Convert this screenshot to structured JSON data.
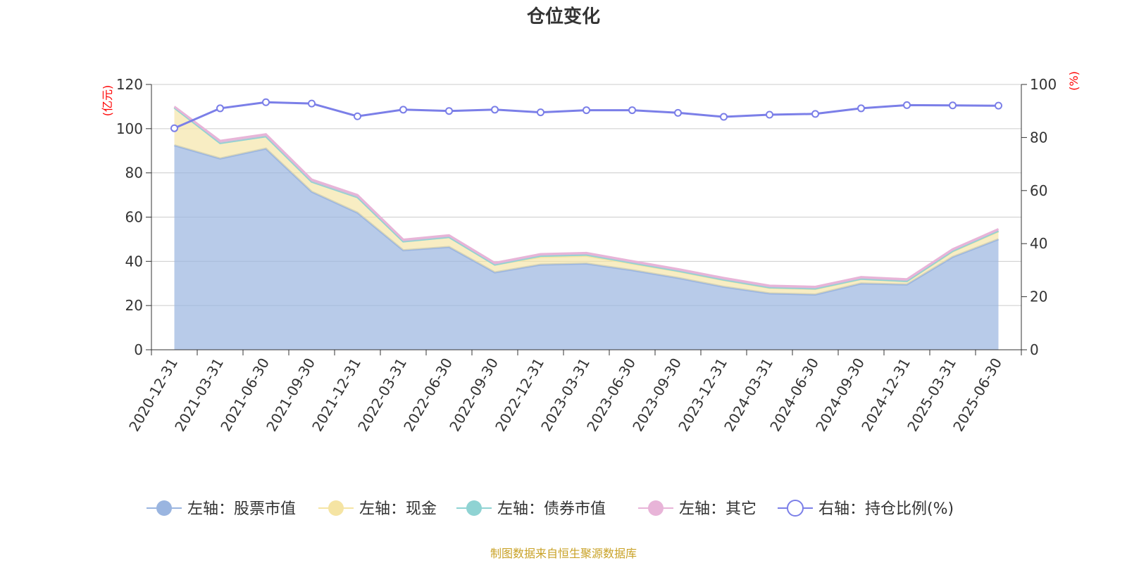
{
  "chart_data": {
    "type": "area",
    "title": "仓位变化",
    "x": [
      "2020-12-31",
      "2021-03-31",
      "2021-06-30",
      "2021-09-30",
      "2021-12-31",
      "2022-03-31",
      "2022-06-30",
      "2022-09-30",
      "2022-12-31",
      "2023-03-31",
      "2023-06-30",
      "2023-09-30",
      "2023-12-31",
      "2024-03-31",
      "2024-06-30",
      "2024-09-30",
      "2024-12-31",
      "2025-03-31",
      "2025-06-30"
    ],
    "left_axis": {
      "unit": "(亿元)",
      "ylim": [
        0,
        120
      ],
      "ticks": [
        0,
        20,
        40,
        60,
        80,
        100,
        120
      ]
    },
    "right_axis": {
      "unit": "(%)",
      "ylim": [
        0,
        100
      ],
      "ticks": [
        0,
        20,
        40,
        60,
        80,
        100
      ]
    },
    "series": [
      {
        "name": "左轴：股票市值",
        "axis": "left",
        "type": "area",
        "color": "#9ab5e0",
        "values": [
          92.5,
          86.5,
          91.0,
          71.5,
          62.0,
          45.0,
          46.5,
          35.0,
          38.5,
          39.0,
          36.0,
          32.5,
          28.5,
          25.5,
          25.0,
          30.0,
          29.5,
          42.0,
          50.0
        ]
      },
      {
        "name": "左轴：现金",
        "axis": "left",
        "type": "area",
        "color": "#f5e4a3",
        "values": [
          17.0,
          7.0,
          5.5,
          4.5,
          7.0,
          4.0,
          4.5,
          3.5,
          3.5,
          3.5,
          3.0,
          3.0,
          3.0,
          2.5,
          2.5,
          2.0,
          1.5,
          2.5,
          3.5
        ]
      },
      {
        "name": "左轴：债券市值",
        "axis": "left",
        "type": "area",
        "color": "#8fd3d3",
        "values": [
          0,
          0,
          0,
          0,
          0,
          0,
          0,
          0,
          0.5,
          0.5,
          0.3,
          0.2,
          0.2,
          0.2,
          0.2,
          0.1,
          0.1,
          0.2,
          0.3
        ]
      },
      {
        "name": "左轴：其它",
        "axis": "left",
        "type": "area",
        "color": "#e8b4d8",
        "values": [
          0.5,
          1.0,
          1.0,
          1.0,
          1.0,
          0.8,
          0.8,
          0.8,
          0.8,
          0.8,
          0.8,
          0.8,
          0.8,
          0.8,
          0.8,
          0.8,
          0.8,
          0.8,
          0.8
        ]
      },
      {
        "name": "右轴：持仓比例(%)",
        "axis": "right",
        "type": "line",
        "color": "#7b7fe8",
        "values": [
          83.5,
          91.0,
          93.3,
          92.8,
          88.0,
          90.5,
          90.0,
          90.5,
          89.5,
          90.3,
          90.3,
          89.3,
          87.8,
          88.6,
          88.9,
          91.0,
          92.2,
          92.1,
          92.0
        ]
      }
    ],
    "legend_position": "bottom-center",
    "grid": true
  },
  "source_label": "制图数据来自恒生聚源数据库"
}
